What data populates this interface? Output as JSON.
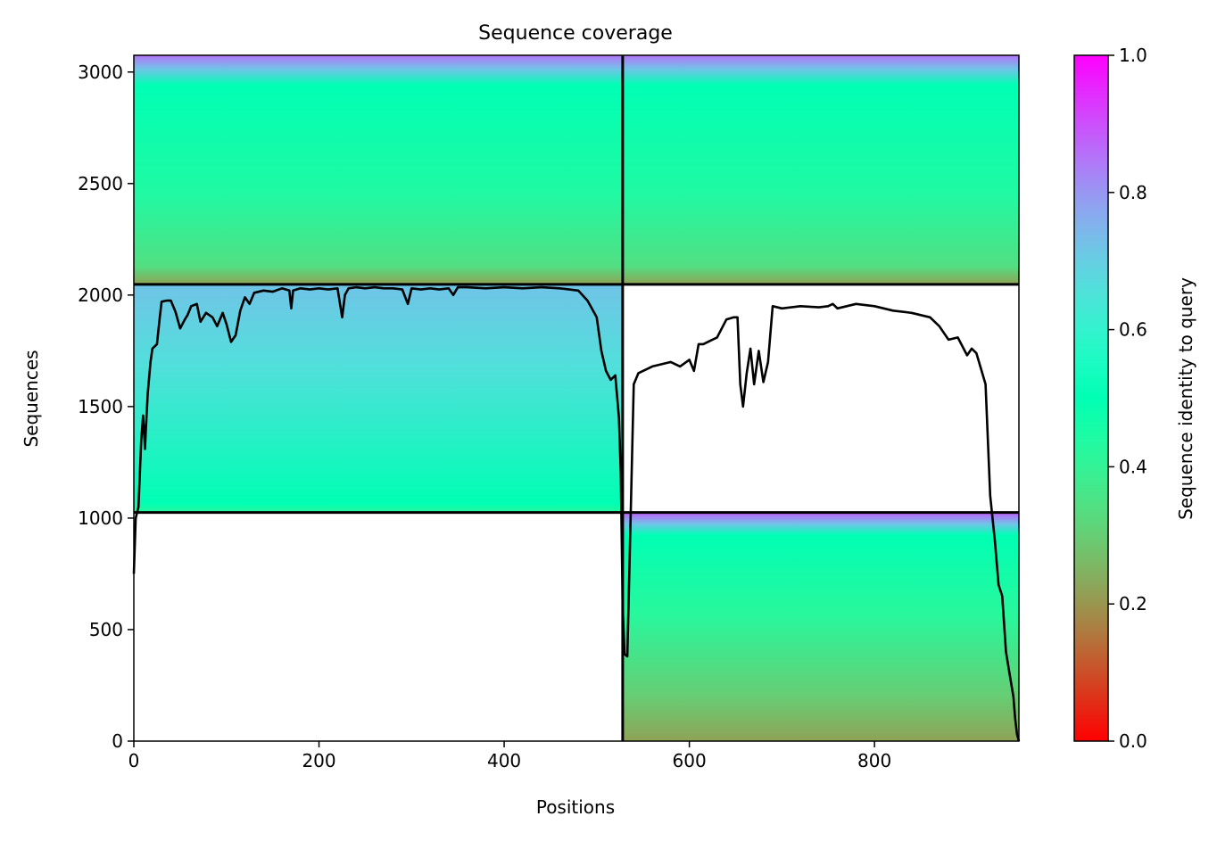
{
  "chart_data": {
    "type": "heatmap",
    "title": "Sequence coverage",
    "xlabel": "Positions",
    "ylabel": "Sequences",
    "xlim": [
      0,
      956
    ],
    "ylim": [
      0,
      3075
    ],
    "xticks": [
      0,
      200,
      400,
      600,
      800
    ],
    "yticks": [
      0,
      500,
      1000,
      1500,
      2000,
      2500,
      3000
    ],
    "colorbar": {
      "label": "Sequence identity to query",
      "range": [
        0.0,
        1.0
      ],
      "ticks": [
        "0.0",
        "0.2",
        "0.4",
        "0.6",
        "0.8",
        "1.0"
      ],
      "colormap": "rainbow"
    },
    "chain_boundary_x": 528,
    "row_boundaries_y": [
      1025,
      2048
    ],
    "blocks": [
      {
        "name": "paired",
        "x_start": 0,
        "x_end": 528,
        "y_start": 2048,
        "y_end": 3075,
        "identity_top": 0.85,
        "identity_mid": 0.5,
        "identity_bottom": 0.25,
        "stop_positions": [
          0.0,
          0.06,
          0.13,
          0.6,
          0.92,
          1.0
        ],
        "stop_identity": [
          0.85,
          0.72,
          0.5,
          0.44,
          0.34,
          0.22
        ]
      },
      {
        "name": "paired",
        "x_start": 528,
        "x_end": 956,
        "y_start": 2048,
        "y_end": 3075,
        "identity_top": 0.85,
        "identity_mid": 0.5,
        "identity_bottom": 0.25,
        "stop_positions": [
          0.0,
          0.06,
          0.13,
          0.6,
          0.92,
          1.0
        ],
        "stop_identity": [
          0.85,
          0.72,
          0.5,
          0.44,
          0.34,
          0.22
        ]
      },
      {
        "name": "chain A unpaired",
        "x_start": 0,
        "x_end": 528,
        "y_start": 1025,
        "y_end": 2048,
        "stop_positions": [
          0.0,
          0.35,
          0.96,
          1.0
        ],
        "stop_identity": [
          0.72,
          0.66,
          0.5,
          0.42
        ]
      },
      {
        "name": "chain B unpaired",
        "x_start": 528,
        "x_end": 956,
        "y_start": 0,
        "y_end": 1025,
        "stop_positions": [
          0.0,
          0.05,
          0.1,
          0.45,
          0.8,
          1.0
        ],
        "stop_identity": [
          0.88,
          0.72,
          0.5,
          0.42,
          0.3,
          0.22
        ]
      }
    ],
    "coverage_line": {
      "color": "#000000",
      "x": [
        0,
        2,
        5,
        8,
        10,
        12,
        13,
        15,
        18,
        20,
        25,
        28,
        30,
        35,
        40,
        45,
        50,
        55,
        58,
        62,
        68,
        72,
        78,
        85,
        90,
        96,
        100,
        105,
        110,
        115,
        120,
        125,
        130,
        140,
        150,
        160,
        168,
        170,
        172,
        180,
        190,
        200,
        210,
        220,
        225,
        228,
        232,
        240,
        250,
        260,
        270,
        280,
        290,
        296,
        300,
        310,
        320,
        330,
        340,
        345,
        350,
        360,
        380,
        400,
        420,
        440,
        460,
        480,
        490,
        500,
        505,
        510,
        515,
        520,
        524,
        526,
        528,
        530,
        533,
        536,
        540,
        545,
        550,
        560,
        570,
        580,
        590,
        600,
        605,
        610,
        615,
        620,
        630,
        640,
        648,
        652,
        655,
        658,
        662,
        666,
        670,
        675,
        680,
        685,
        690,
        700,
        720,
        740,
        750,
        755,
        760,
        780,
        800,
        820,
        840,
        860,
        870,
        880,
        890,
        900,
        905,
        910,
        920,
        925,
        930,
        934,
        938,
        942,
        946,
        950,
        952,
        954,
        956
      ],
      "y": [
        750,
        1000,
        1050,
        1350,
        1460,
        1310,
        1400,
        1560,
        1700,
        1760,
        1780,
        1900,
        1970,
        1975,
        1975,
        1925,
        1850,
        1890,
        1910,
        1950,
        1960,
        1880,
        1920,
        1900,
        1860,
        1920,
        1870,
        1790,
        1820,
        1930,
        1990,
        1960,
        2010,
        2020,
        2015,
        2030,
        2020,
        1940,
        2020,
        2030,
        2025,
        2030,
        2025,
        2030,
        1900,
        2000,
        2030,
        2035,
        2030,
        2035,
        2030,
        2030,
        2025,
        1960,
        2030,
        2025,
        2030,
        2025,
        2030,
        2000,
        2035,
        2035,
        2030,
        2035,
        2030,
        2035,
        2030,
        2020,
        1975,
        1900,
        1750,
        1660,
        1620,
        1640,
        1450,
        1200,
        600,
        390,
        380,
        900,
        1600,
        1650,
        1660,
        1680,
        1690,
        1700,
        1680,
        1710,
        1660,
        1780,
        1780,
        1790,
        1810,
        1890,
        1900,
        1900,
        1600,
        1500,
        1650,
        1760,
        1600,
        1750,
        1610,
        1700,
        1950,
        1940,
        1950,
        1945,
        1950,
        1960,
        1940,
        1960,
        1950,
        1930,
        1920,
        1900,
        1860,
        1800,
        1810,
        1730,
        1760,
        1740,
        1600,
        1100,
        900,
        700,
        650,
        400,
        300,
        200,
        100,
        30,
        0
      ]
    }
  }
}
